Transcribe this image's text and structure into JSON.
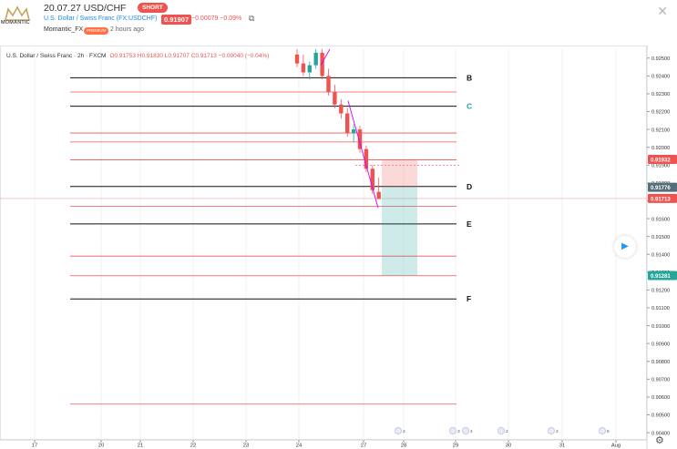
{
  "header": {
    "title": "20.07.27 USD/CHF",
    "direction_badge": "SHORT",
    "symbol_line": "U.S. Dollar / Swiss Franc (FX:USDCHF)",
    "price": "0.91907",
    "change": "−0.00079 −0.09%",
    "author": "Momantic_FX",
    "author_badge": "PREMIUM",
    "time_ago": "2 hours ago",
    "logo_text": "MOMANTIC"
  },
  "legend": {
    "title": "U.S. Dollar / Swiss Franc · 2h · FXCM",
    "ohlc": "O0.91753 H0.91830 L0.91707 C0.91713 −0.00040 (−0.04%)"
  },
  "chart_data": {
    "type": "candlestick",
    "x_tick_labels": [
      "17",
      "20",
      "21",
      "22",
      "23",
      "24",
      "27",
      "28",
      "29",
      "30",
      "31",
      "Aug"
    ],
    "y_tick_labels": [
      "0.92500",
      "0.92400",
      "0.92300",
      "0.92200",
      "0.92100",
      "0.92000",
      "0.91900",
      "0.91800",
      "0.91700",
      "0.91600",
      "0.91500",
      "0.91400",
      "0.91300",
      "0.91200",
      "0.91100",
      "0.91000",
      "0.90900",
      "0.90800",
      "0.90700",
      "0.90600",
      "0.90500",
      "0.90400"
    ],
    "y_range": [
      0.9038,
      0.9255
    ],
    "price_labels": [
      {
        "value": "0.91932",
        "color": "#ef5350"
      },
      {
        "value": "0.91776",
        "color": "#546e7a"
      },
      {
        "value": "0.91713",
        "color": "#ef5350"
      },
      {
        "value": "0.91281",
        "color": "#26a69a"
      }
    ],
    "level_labels": [
      {
        "label": "B",
        "price": 0.9239,
        "color": "#111111"
      },
      {
        "label": "C",
        "price": 0.9223,
        "color": "#26a69a"
      },
      {
        "label": "D",
        "price": 0.9178,
        "color": "#111111"
      },
      {
        "label": "E",
        "price": 0.9157,
        "color": "#111111"
      },
      {
        "label": "F",
        "price": 0.9115,
        "color": "#111111"
      }
    ],
    "black_lines": [
      0.9239,
      0.9223,
      0.9178,
      0.9157,
      0.9115
    ],
    "red_lines": [
      0.9231,
      0.9208,
      0.9203,
      0.9193,
      0.9167,
      0.9139,
      0.9128,
      0.9056
    ],
    "position": {
      "entry": 0.91776,
      "stop": 0.91932,
      "target": 0.91281
    },
    "candles": [
      {
        "o": 0.9252,
        "h": 0.9255,
        "l": 0.9245,
        "c": 0.9247
      },
      {
        "o": 0.9247,
        "h": 0.9252,
        "l": 0.924,
        "c": 0.9242
      },
      {
        "o": 0.9242,
        "h": 0.9248,
        "l": 0.9238,
        "c": 0.9246
      },
      {
        "o": 0.9246,
        "h": 0.9255,
        "l": 0.9244,
        "c": 0.9253
      },
      {
        "o": 0.9253,
        "h": 0.9255,
        "l": 0.9238,
        "c": 0.924
      },
      {
        "o": 0.924,
        "h": 0.9244,
        "l": 0.9229,
        "c": 0.9231
      },
      {
        "o": 0.9231,
        "h": 0.9235,
        "l": 0.9222,
        "c": 0.9224
      },
      {
        "o": 0.9224,
        "h": 0.9227,
        "l": 0.9216,
        "c": 0.9219
      },
      {
        "o": 0.9219,
        "h": 0.9222,
        "l": 0.9206,
        "c": 0.9208
      },
      {
        "o": 0.9208,
        "h": 0.9213,
        "l": 0.9203,
        "c": 0.921
      },
      {
        "o": 0.921,
        "h": 0.9212,
        "l": 0.9197,
        "c": 0.9199
      },
      {
        "o": 0.9199,
        "h": 0.9201,
        "l": 0.9186,
        "c": 0.9188
      },
      {
        "o": 0.9188,
        "h": 0.919,
        "l": 0.9174,
        "c": 0.9176
      },
      {
        "o": 0.9175,
        "h": 0.9183,
        "l": 0.9171,
        "c": 0.9171
      }
    ],
    "events": [
      {
        "day": "27.5",
        "flags": "🇺🇸 2"
      },
      {
        "day": "28.9",
        "flags": "🇺🇸 3"
      },
      {
        "day": "29.2",
        "flags": "🇺🇸 4"
      },
      {
        "day": "29.6",
        "flags": "🇨🇭 🇺🇸 2"
      },
      {
        "day": "30.6",
        "flags": "🇨🇭 🇺🇸 2"
      },
      {
        "day": "31.5",
        "flags": "🇨🇭 🇺🇸 6"
      }
    ]
  }
}
